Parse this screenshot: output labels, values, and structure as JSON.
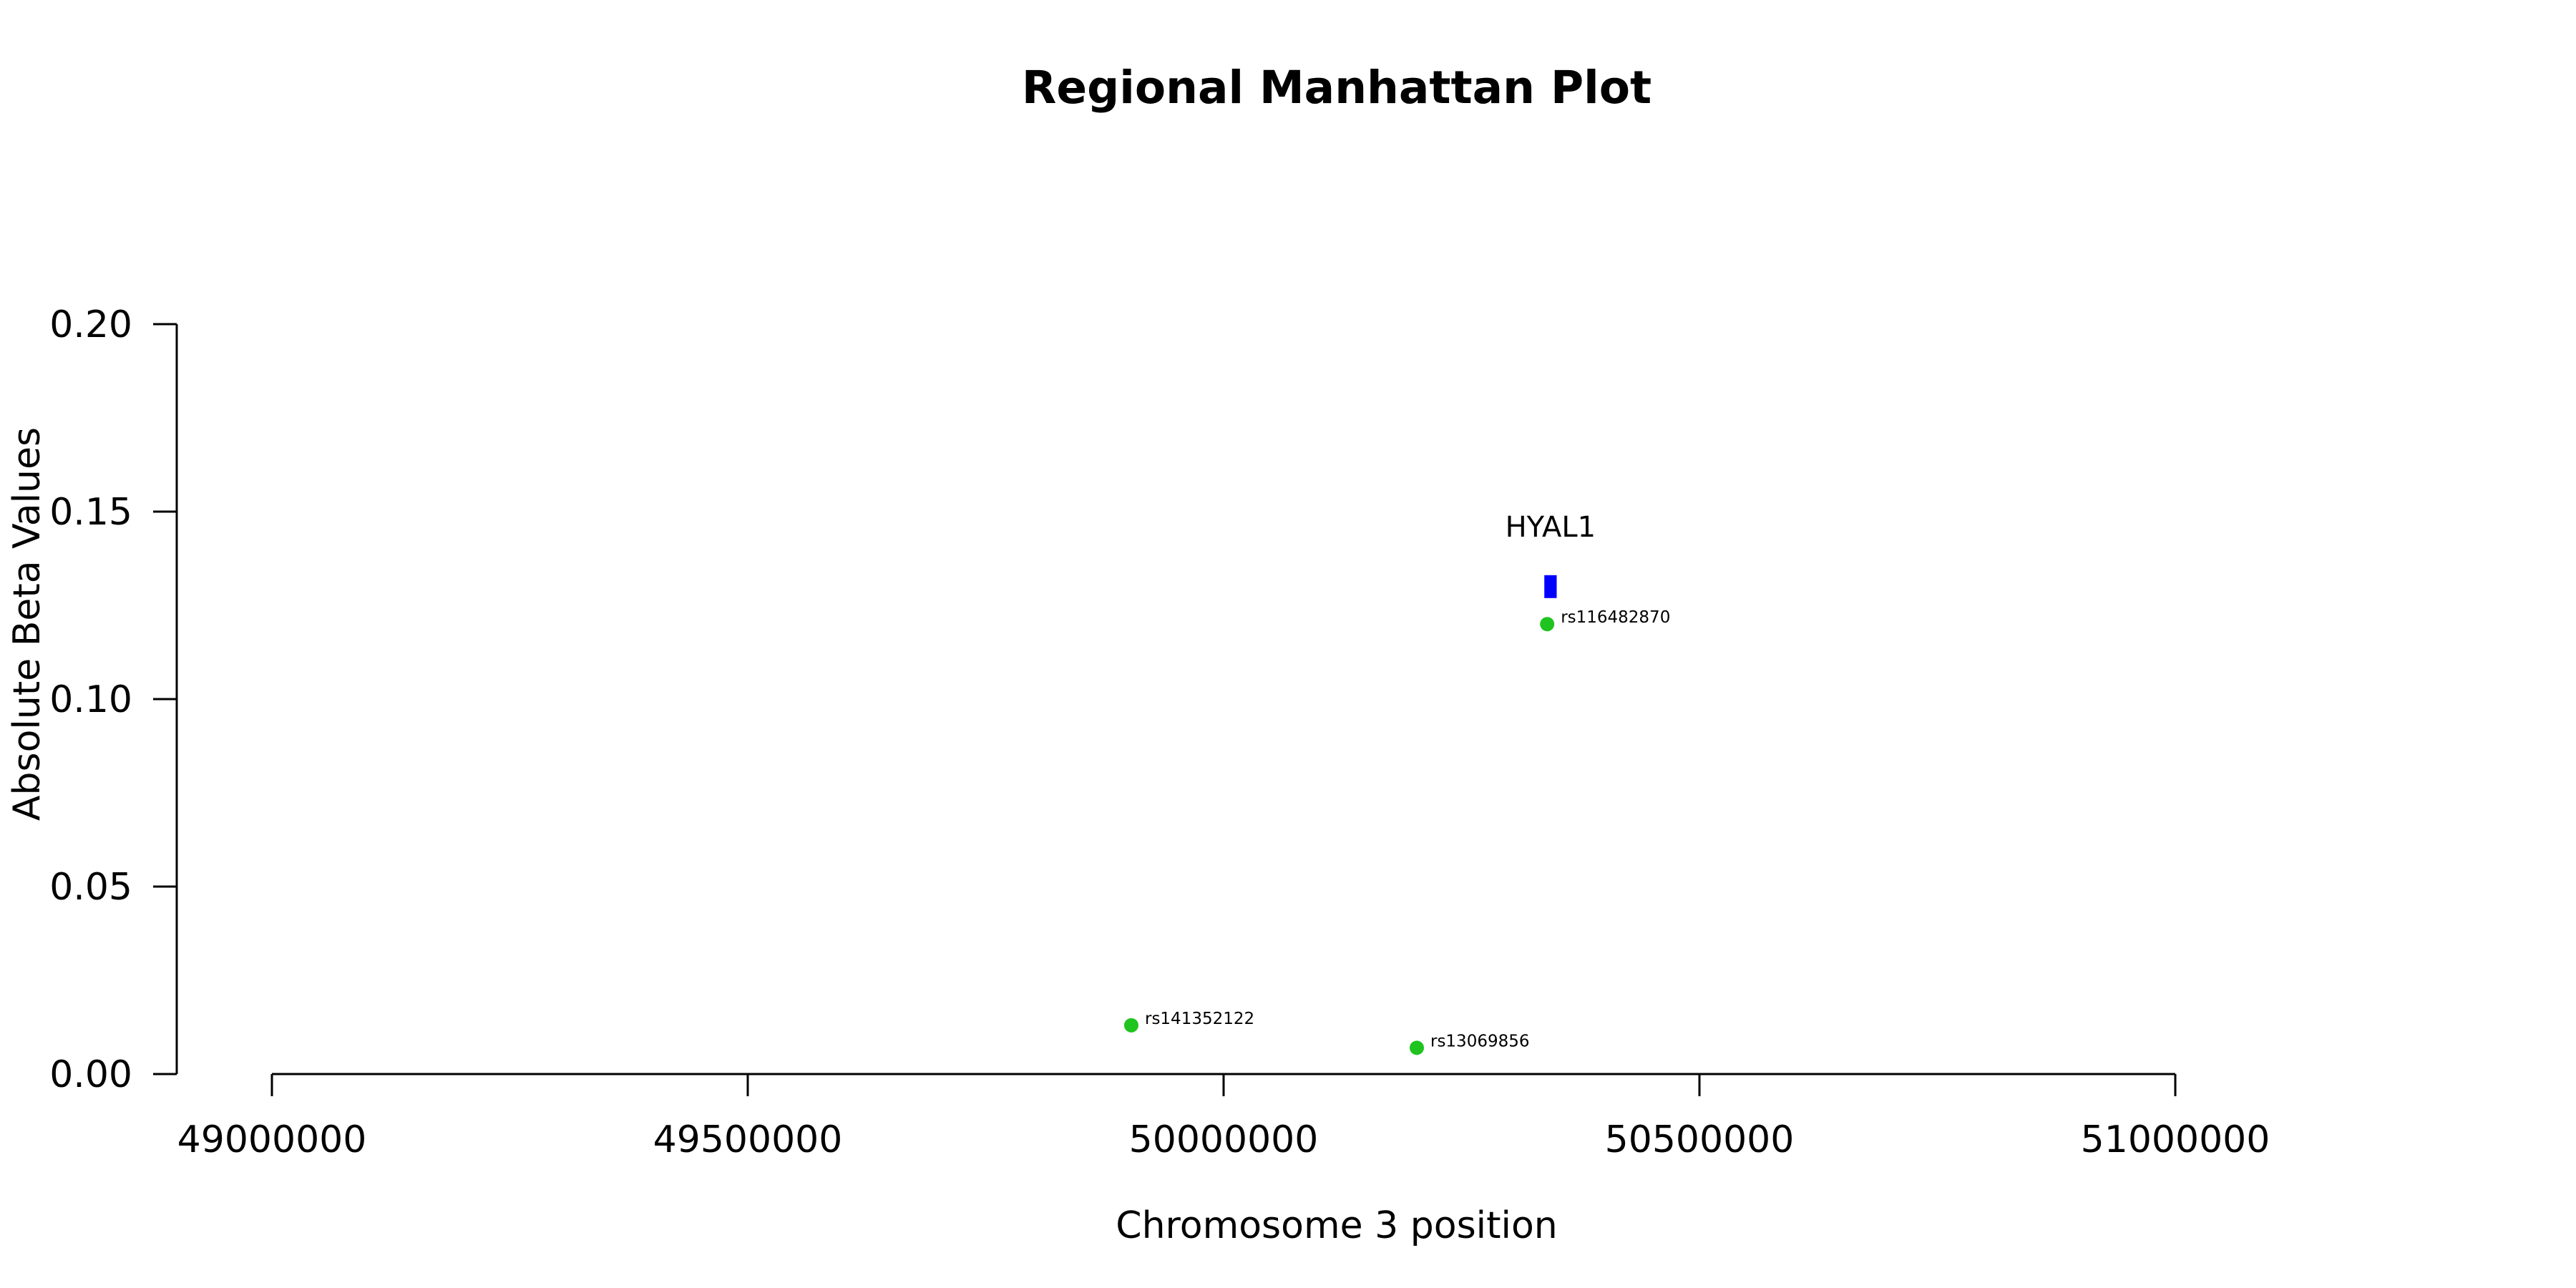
{
  "chart_data": {
    "type": "scatter",
    "title": "Regional Manhattan Plot",
    "xlabel": "Chromosome 3 position",
    "ylabel": "Absolute Beta Values",
    "xlim": [
      49000000,
      51000000
    ],
    "ylim": [
      0,
      0.2
    ],
    "x_ticks": [
      49000000,
      49500000,
      50000000,
      50500000,
      51000000
    ],
    "x_tick_labels": [
      "49000000",
      "49500000",
      "50000000",
      "50500000",
      "51000000"
    ],
    "y_ticks": [
      0,
      0.05,
      0.1,
      0.15,
      0.2
    ],
    "y_tick_labels": [
      "0.00",
      "0.05",
      "0.10",
      "0.15",
      "0.20"
    ],
    "grid": false,
    "point_color": "#1fc41f",
    "points": [
      {
        "label": "rs141352122",
        "x": 49903000,
        "y": 0.013
      },
      {
        "label": "rs13069856",
        "x": 50203000,
        "y": 0.007
      },
      {
        "label": "rs116482870",
        "x": 50340000,
        "y": 0.12
      }
    ],
    "genes": [
      {
        "name": "HYAL1",
        "start": 50337000,
        "end": 50350000,
        "y": 0.13,
        "color": "#0000ff"
      }
    ]
  }
}
